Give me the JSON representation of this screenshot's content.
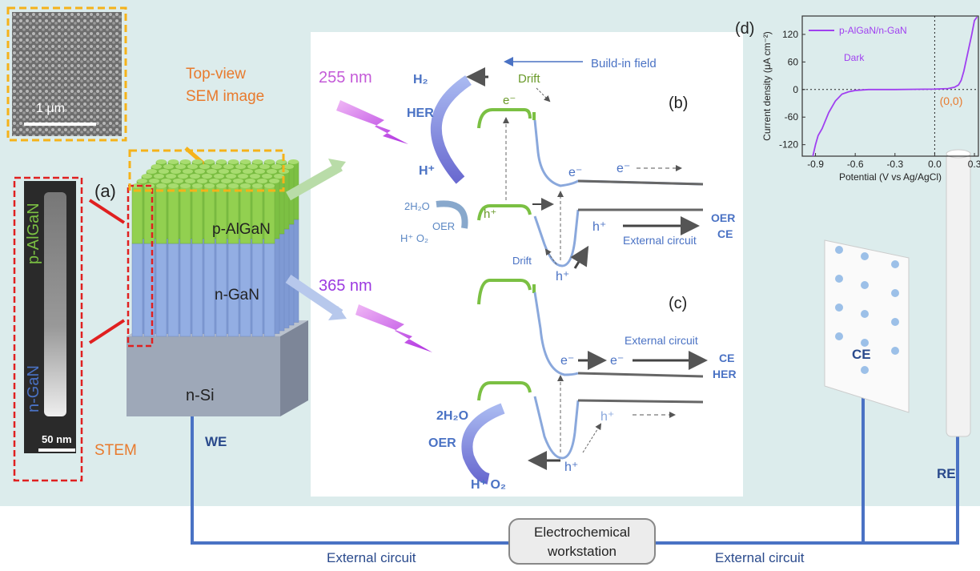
{
  "figure": {
    "sem": {
      "scale": "1 μm",
      "caption": [
        "Top-view",
        "SEM image"
      ]
    },
    "stem": {
      "p_label": "p-AlGaN",
      "n_label": "n-GaN",
      "scale": "50 nm",
      "caption": "STEM"
    },
    "panel_a": {
      "tag": "(a)",
      "layers": [
        "p-AlGaN",
        "n-GaN",
        "n-Si"
      ]
    },
    "panel_b": {
      "tag": "(b)",
      "wavelength": "255 nm",
      "field": "Build-in field",
      "h2": "H₂",
      "her": "HER",
      "h_plus": "H⁺",
      "e_top": "e⁻",
      "drift_top": "Drift",
      "water": "2H₂O",
      "products": "H⁺ O₂",
      "oer": "OER",
      "h_left": "h⁺",
      "e_mid": "e⁻",
      "e_right": "e⁻",
      "h_right": "h⁺",
      "circuit": "External circuit",
      "counter": [
        "OER",
        "CE"
      ],
      "drift_bottom": "Drift",
      "h_bottom": "h⁺"
    },
    "panel_c": {
      "tag": "(c)",
      "wavelength": "365 nm",
      "circuit": "External circuit",
      "e_left": "e⁻",
      "e_right": "e⁻",
      "counter": [
        "CE",
        "HER"
      ],
      "water": "2H₂O",
      "oer": "OER",
      "h_bottom": "h⁺",
      "h_right": "h⁺",
      "products": "H⁺ O₂"
    },
    "electrodes": {
      "we": "WE",
      "ce": "CE",
      "re": "RE"
    },
    "workstation": [
      "Electrochemical",
      "workstation"
    ],
    "circuit": [
      "External circuit",
      "External circuit"
    ]
  },
  "chart_data": {
    "type": "line",
    "tag": "(d)",
    "xlabel": "Potential (V vs Ag/AgCl)",
    "ylabel": "Current density (μA cm⁻²)",
    "annotations": [
      "Dark",
      "(0,0)"
    ],
    "x": [
      -0.92,
      -0.9,
      -0.88,
      -0.85,
      -0.8,
      -0.75,
      -0.7,
      -0.65,
      -0.6,
      -0.5,
      -0.3,
      0.0,
      0.1,
      0.15,
      0.18,
      0.2,
      0.22,
      0.25,
      0.28,
      0.3,
      0.32
    ],
    "series": [
      {
        "name": "p-AlGaN/n-GaN",
        "color": "#a040f0",
        "values": [
          -145,
          -120,
          -100,
          -85,
          -50,
          -25,
          -10,
          -5,
          -2,
          0,
          0,
          1,
          2,
          5,
          10,
          20,
          40,
          80,
          120,
          150,
          158
        ]
      }
    ],
    "xlim": [
      -1.0,
      0.33
    ],
    "ylim": [
      -145,
      160
    ],
    "xticks": [
      -0.9,
      -0.6,
      -0.3,
      {
        "value": 0,
        "label": "0.0"
      },
      0.3
    ],
    "yticks": [
      -120,
      -60,
      0,
      60,
      120
    ]
  }
}
